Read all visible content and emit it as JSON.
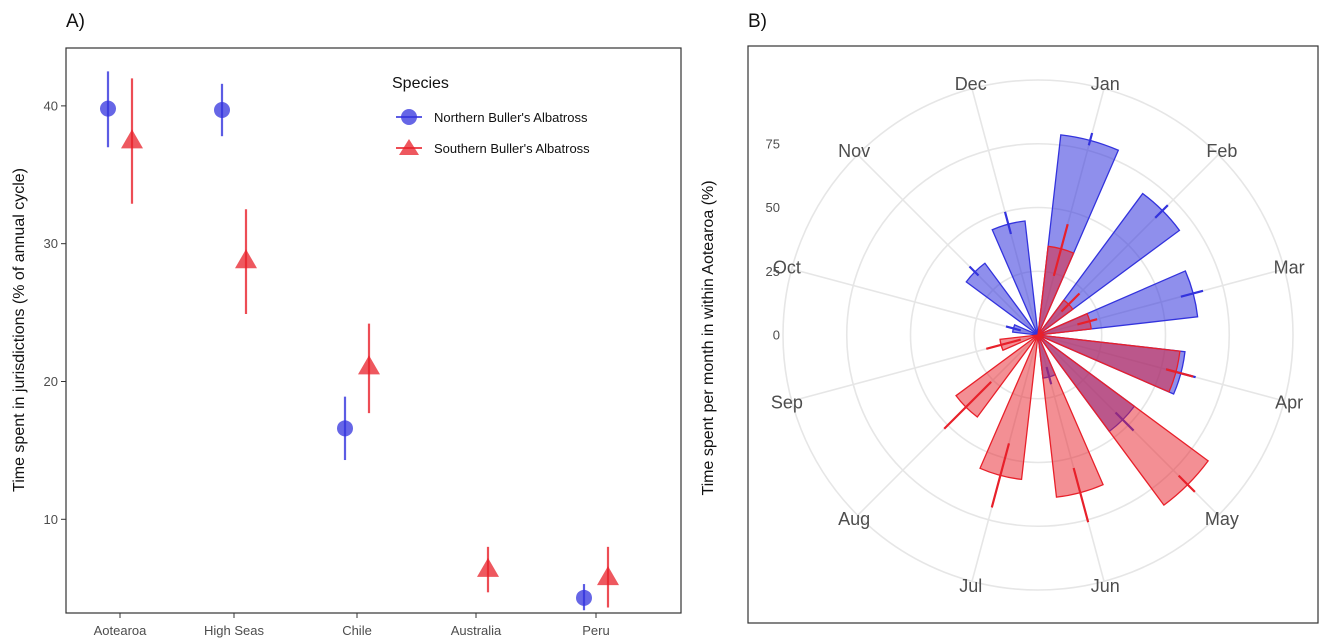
{
  "panels": {
    "a": {
      "label": "A)"
    },
    "b": {
      "label": "B)"
    }
  },
  "legend": {
    "title": "Species",
    "entries": [
      {
        "name": "Northern Buller's Albatross",
        "shape": "circle"
      },
      {
        "name": "Southern Buller's Albatross",
        "shape": "triangle"
      }
    ]
  },
  "colors": {
    "northern": "#3333dd",
    "southern": "#e8202a"
  },
  "chart_data": [
    {
      "type": "scatter",
      "panel": "A)",
      "ylabel": "Time spent in jurisdictions (% of annual cycle)",
      "xlabel": "",
      "ylim": [
        3.2,
        44.2
      ],
      "yticks": [
        10,
        20,
        30,
        40
      ],
      "categories": [
        "Aotearoa",
        "High Seas",
        "Chile",
        "Australia",
        "Peru"
      ],
      "grid": false,
      "legend_position": "top-right",
      "series": [
        {
          "name": "Northern Buller's Albatross",
          "values": [
            39.8,
            39.7,
            16.6,
            null,
            4.3
          ],
          "lower": [
            37.0,
            37.8,
            14.3,
            null,
            3.4
          ],
          "upper": [
            42.5,
            41.6,
            18.9,
            null,
            5.3
          ]
        },
        {
          "name": "Southern Buller's Albatross",
          "values": [
            37.5,
            28.8,
            21.1,
            6.4,
            5.8
          ],
          "lower": [
            32.9,
            24.9,
            17.7,
            4.7,
            3.6
          ],
          "upper": [
            42.0,
            32.5,
            24.2,
            8.0,
            8.0
          ]
        }
      ]
    },
    {
      "type": "bar",
      "subtype": "polar",
      "panel": "B)",
      "ylabel": "Time spent per month in within Aotearoa (%)",
      "rticks": [
        0,
        25,
        50,
        75
      ],
      "rlim": [
        0,
        100
      ],
      "categories": [
        "Jan",
        "Feb",
        "Mar",
        "Apr",
        "May",
        "Jun",
        "Jul",
        "Aug",
        "Sep",
        "Oct",
        "Nov",
        "Dec"
      ],
      "series": [
        {
          "name": "Northern Buller's Albatross",
          "values": [
            79,
            69,
            63,
            58,
            47,
            17,
            0,
            0,
            0,
            10,
            35,
            45
          ],
          "lower": [
            77,
            65,
            58,
            52,
            43,
            13,
            0,
            0,
            0,
            7,
            33,
            41
          ],
          "upper": [
            82,
            72,
            67,
            64,
            53,
            20,
            0,
            0,
            0,
            13,
            38,
            50
          ]
        },
        {
          "name": "Southern Buller's Albatross",
          "values": [
            35,
            17,
            21,
            56,
            83,
            64,
            57,
            40,
            15,
            0,
            0,
            0
          ],
          "lower": [
            24,
            13,
            16,
            52,
            78,
            54,
            44,
            26,
            7,
            0,
            0,
            0
          ],
          "upper": [
            45,
            23,
            24,
            63,
            87,
            76,
            70,
            52,
            21,
            0,
            0,
            0
          ]
        }
      ]
    }
  ]
}
